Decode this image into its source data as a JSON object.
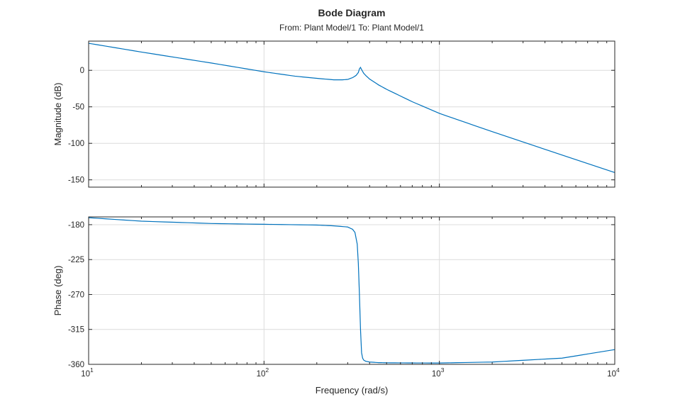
{
  "chart_data": {
    "type": "line",
    "title": "Bode Diagram",
    "subtitle": "From: Plant Model/1  To: Plant Model/1",
    "xlabel": "Frequency (rad/s)",
    "x_scale": "log",
    "xlim": [
      10,
      10000
    ],
    "x_ticks": [
      {
        "base": "10",
        "exp": "1"
      },
      {
        "base": "10",
        "exp": "2"
      },
      {
        "base": "10",
        "exp": "3"
      },
      {
        "base": "10",
        "exp": "4"
      }
    ],
    "grid": true,
    "line_color": "#0072BD",
    "panels": [
      {
        "id": "magnitude",
        "ylabel": "Magnitude (dB)",
        "ylim": [
          -160,
          40
        ],
        "y_ticks": [
          "0",
          "-50",
          "-100",
          "-150"
        ],
        "y_tick_values": [
          0,
          -50,
          -100,
          -150
        ],
        "series": [
          {
            "x": [
              10,
              20,
              50,
              100,
              150,
              200,
              250,
              280,
              300,
              320,
              335,
              345,
              350,
              355,
              360,
              370,
              380,
              400,
              450,
              500,
              700,
              1000,
              2000,
              5000,
              10000
            ],
            "y": [
              37,
              25,
              10,
              -2,
              -8,
              -11,
              -13,
              -13,
              -12.5,
              -10,
              -7,
              -3,
              2,
              4,
              1,
              -4,
              -7,
              -12,
              -20,
              -26,
              -43,
              -59,
              -84,
              -116,
              -140
            ]
          }
        ]
      },
      {
        "id": "phase",
        "ylabel": "Phase (deg)",
        "ylim": [
          -360,
          -170
        ],
        "y_ticks": [
          "-180",
          "-225",
          "-270",
          "-315",
          "-360"
        ],
        "y_tick_values": [
          -180,
          -225,
          -270,
          -315,
          -360
        ],
        "series": [
          {
            "x": [
              10,
              20,
              50,
              100,
              200,
              250,
              300,
              320,
              330,
              340,
              345,
              350,
              355,
              360,
              365,
              370,
              380,
              400,
              450,
              500,
              700,
              1000,
              2000,
              5000,
              10000
            ],
            "y": [
              -171,
              -175.5,
              -178.5,
              -179.5,
              -180.5,
              -181.5,
              -183,
              -186,
              -190,
              -205,
              -230,
              -270,
              -315,
              -345,
              -352,
              -354.5,
              -356,
              -357,
              -357.8,
              -358,
              -358.2,
              -358.3,
              -357,
              -352,
              -341
            ]
          }
        ]
      }
    ]
  }
}
